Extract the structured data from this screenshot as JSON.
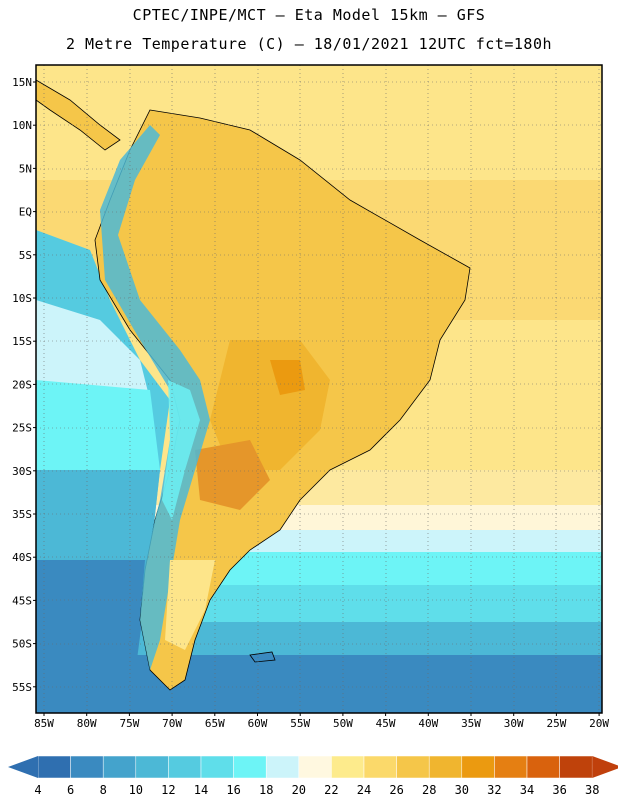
{
  "header": {
    "line1": "CPTEC/INPE/MCT –  Eta Model 15km – GFS",
    "line2": "2 Metre Temperature (C) – 18/01/2021 12UTC fct=180h"
  },
  "lat_labels": [
    "15N",
    "10N",
    "5N",
    "EQ",
    "5S",
    "10S",
    "15S",
    "20S",
    "25S",
    "30S",
    "35S",
    "40S",
    "45S",
    "50S",
    "55S"
  ],
  "lon_labels": [
    "85W",
    "80W",
    "75W",
    "70W",
    "65W",
    "60W",
    "55W",
    "50W",
    "45W",
    "40W",
    "35W",
    "30W",
    "25W",
    "20W"
  ],
  "colorbar": {
    "values": [
      "4",
      "6",
      "8",
      "10",
      "12",
      "14",
      "16",
      "18",
      "20",
      "22",
      "24",
      "26",
      "28",
      "30",
      "32",
      "34",
      "36",
      "38"
    ],
    "colors": [
      "#2f6fb0",
      "#3a8ac0",
      "#44a3cc",
      "#4cb8d6",
      "#55cbe0",
      "#5fdeea",
      "#6df4f6",
      "#ccf4fa",
      "#fff8e0",
      "#fdeb8c",
      "#fbd96a",
      "#f5c649",
      "#f0b52f",
      "#eb9a10",
      "#e57f12",
      "#d9620d",
      "#bf420b"
    ],
    "low_color": "#2f6fb0",
    "high_color": "#c0400c"
  }
}
